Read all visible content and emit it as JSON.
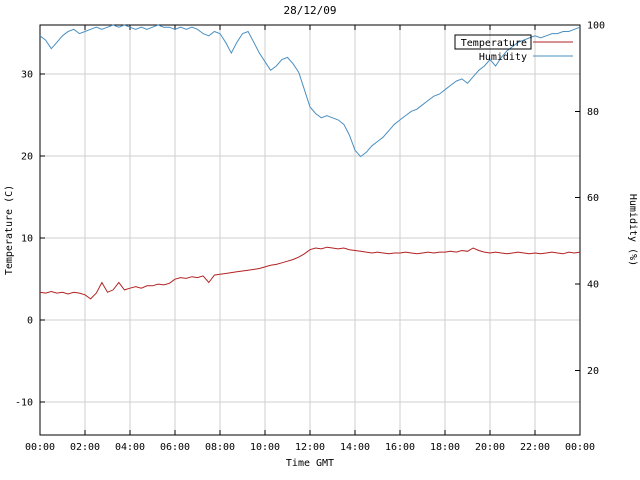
{
  "chart_data": {
    "type": "line",
    "title": "28/12/09",
    "xlabel": "Time GMT",
    "grid": true,
    "legend_position": "top-right-inside",
    "xlim": [
      0,
      24
    ],
    "x_ticks": [
      "00:00",
      "02:00",
      "04:00",
      "06:00",
      "08:00",
      "10:00",
      "12:00",
      "14:00",
      "16:00",
      "18:00",
      "20:00",
      "22:00",
      "00:00"
    ],
    "x_tick_hours": [
      0,
      2,
      4,
      6,
      8,
      10,
      12,
      14,
      16,
      18,
      20,
      22,
      24
    ],
    "axes": {
      "left": {
        "label": "Temperature (C)",
        "ticks": [
          -10,
          0,
          10,
          20,
          30
        ],
        "range": [
          -14,
          36
        ]
      },
      "right": {
        "label": "Humidity (%)",
        "ticks": [
          20,
          40,
          60,
          80,
          100
        ],
        "range": [
          5,
          100
        ]
      }
    },
    "legend": [
      {
        "name": "Temperature",
        "color": "#b22222",
        "boxed": true
      },
      {
        "name": "Humidity",
        "color": "#4a90c2",
        "boxed": false
      }
    ],
    "x_hours": [
      0,
      0.25,
      0.5,
      0.75,
      1,
      1.25,
      1.5,
      1.75,
      2,
      2.25,
      2.5,
      2.75,
      3,
      3.25,
      3.5,
      3.75,
      4,
      4.25,
      4.5,
      4.75,
      5,
      5.25,
      5.5,
      5.75,
      6,
      6.25,
      6.5,
      6.75,
      7,
      7.25,
      7.5,
      7.75,
      8,
      8.25,
      8.5,
      8.75,
      9,
      9.25,
      9.5,
      9.75,
      10,
      10.25,
      10.5,
      10.75,
      11,
      11.25,
      11.5,
      11.75,
      12,
      12.25,
      12.5,
      12.75,
      13,
      13.25,
      13.5,
      13.75,
      14,
      14.25,
      14.5,
      14.75,
      15,
      15.25,
      15.5,
      15.75,
      16,
      16.25,
      16.5,
      16.75,
      17,
      17.25,
      17.5,
      17.75,
      18,
      18.25,
      18.5,
      18.75,
      19,
      19.25,
      19.5,
      19.75,
      20,
      20.25,
      20.5,
      20.75,
      21,
      21.25,
      21.5,
      21.75,
      22,
      22.25,
      22.5,
      22.75,
      23,
      23.25,
      23.5,
      23.75,
      24
    ],
    "series": [
      {
        "name": "Temperature",
        "axis": "left",
        "color": "#b22222",
        "values": [
          3.4,
          3.3,
          3.5,
          3.3,
          3.4,
          3.2,
          3.4,
          3.3,
          3.1,
          2.6,
          3.3,
          4.6,
          3.4,
          3.7,
          4.6,
          3.7,
          3.9,
          4.1,
          3.9,
          4.2,
          4.2,
          4.4,
          4.3,
          4.5,
          5.0,
          5.2,
          5.1,
          5.3,
          5.2,
          5.4,
          4.6,
          5.5,
          5.6,
          5.7,
          5.8,
          5.9,
          6.0,
          6.1,
          6.2,
          6.3,
          6.5,
          6.7,
          6.8,
          7.0,
          7.2,
          7.4,
          7.7,
          8.1,
          8.6,
          8.8,
          8.7,
          8.9,
          8.8,
          8.7,
          8.8,
          8.6,
          8.5,
          8.4,
          8.3,
          8.2,
          8.3,
          8.2,
          8.1,
          8.2,
          8.2,
          8.3,
          8.2,
          8.1,
          8.2,
          8.3,
          8.2,
          8.3,
          8.3,
          8.4,
          8.3,
          8.5,
          8.4,
          8.8,
          8.5,
          8.3,
          8.2,
          8.3,
          8.2,
          8.1,
          8.2,
          8.3,
          8.2,
          8.1,
          8.2,
          8.1,
          8.2,
          8.3,
          8.2,
          8.1,
          8.3,
          8.2,
          8.3
        ]
      },
      {
        "name": "Humidity",
        "axis": "right",
        "color": "#4a90c2",
        "values": [
          97.5,
          96.5,
          94.5,
          96,
          97.5,
          98.5,
          99,
          98,
          98.5,
          99,
          99.5,
          99,
          99.5,
          100,
          99.5,
          100,
          99.5,
          99,
          99.5,
          99,
          99.5,
          100,
          99.5,
          99.5,
          99,
          99.5,
          99,
          99.5,
          99,
          98,
          97.5,
          98.5,
          98,
          96,
          93.5,
          96,
          98,
          98.5,
          96,
          93.5,
          91.5,
          89.5,
          90.5,
          92,
          92.5,
          91,
          89,
          85,
          81,
          79.5,
          78.5,
          79,
          78.5,
          78,
          77,
          74.5,
          71,
          69.5,
          70.5,
          72,
          73,
          74,
          75.5,
          77,
          78,
          79,
          80,
          80.5,
          81.5,
          82.5,
          83.5,
          84,
          85,
          86,
          87,
          87.5,
          86.5,
          88,
          89.5,
          90.5,
          92,
          90.5,
          92.5,
          94,
          95,
          96,
          96.5,
          97,
          97.5,
          97,
          97.5,
          98,
          98,
          98.5,
          98.5,
          99,
          99.5
        ]
      }
    ]
  }
}
